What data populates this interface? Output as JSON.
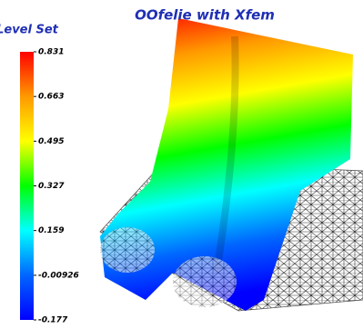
{
  "chart_data": {
    "type": "colorbar",
    "title": "OOfelie with Xfem",
    "colorbar_title": "Level Set",
    "clim": [
      -0.177,
      0.831
    ],
    "cticks": [
      0.831,
      0.663,
      0.495,
      0.327,
      0.159,
      -0.00926,
      -0.177
    ],
    "colors": [
      "#ff0000",
      "#ff9900",
      "#ffff00",
      "#00ff00",
      "#00ffff",
      "#0066ff",
      "#0000ff"
    ]
  }
}
